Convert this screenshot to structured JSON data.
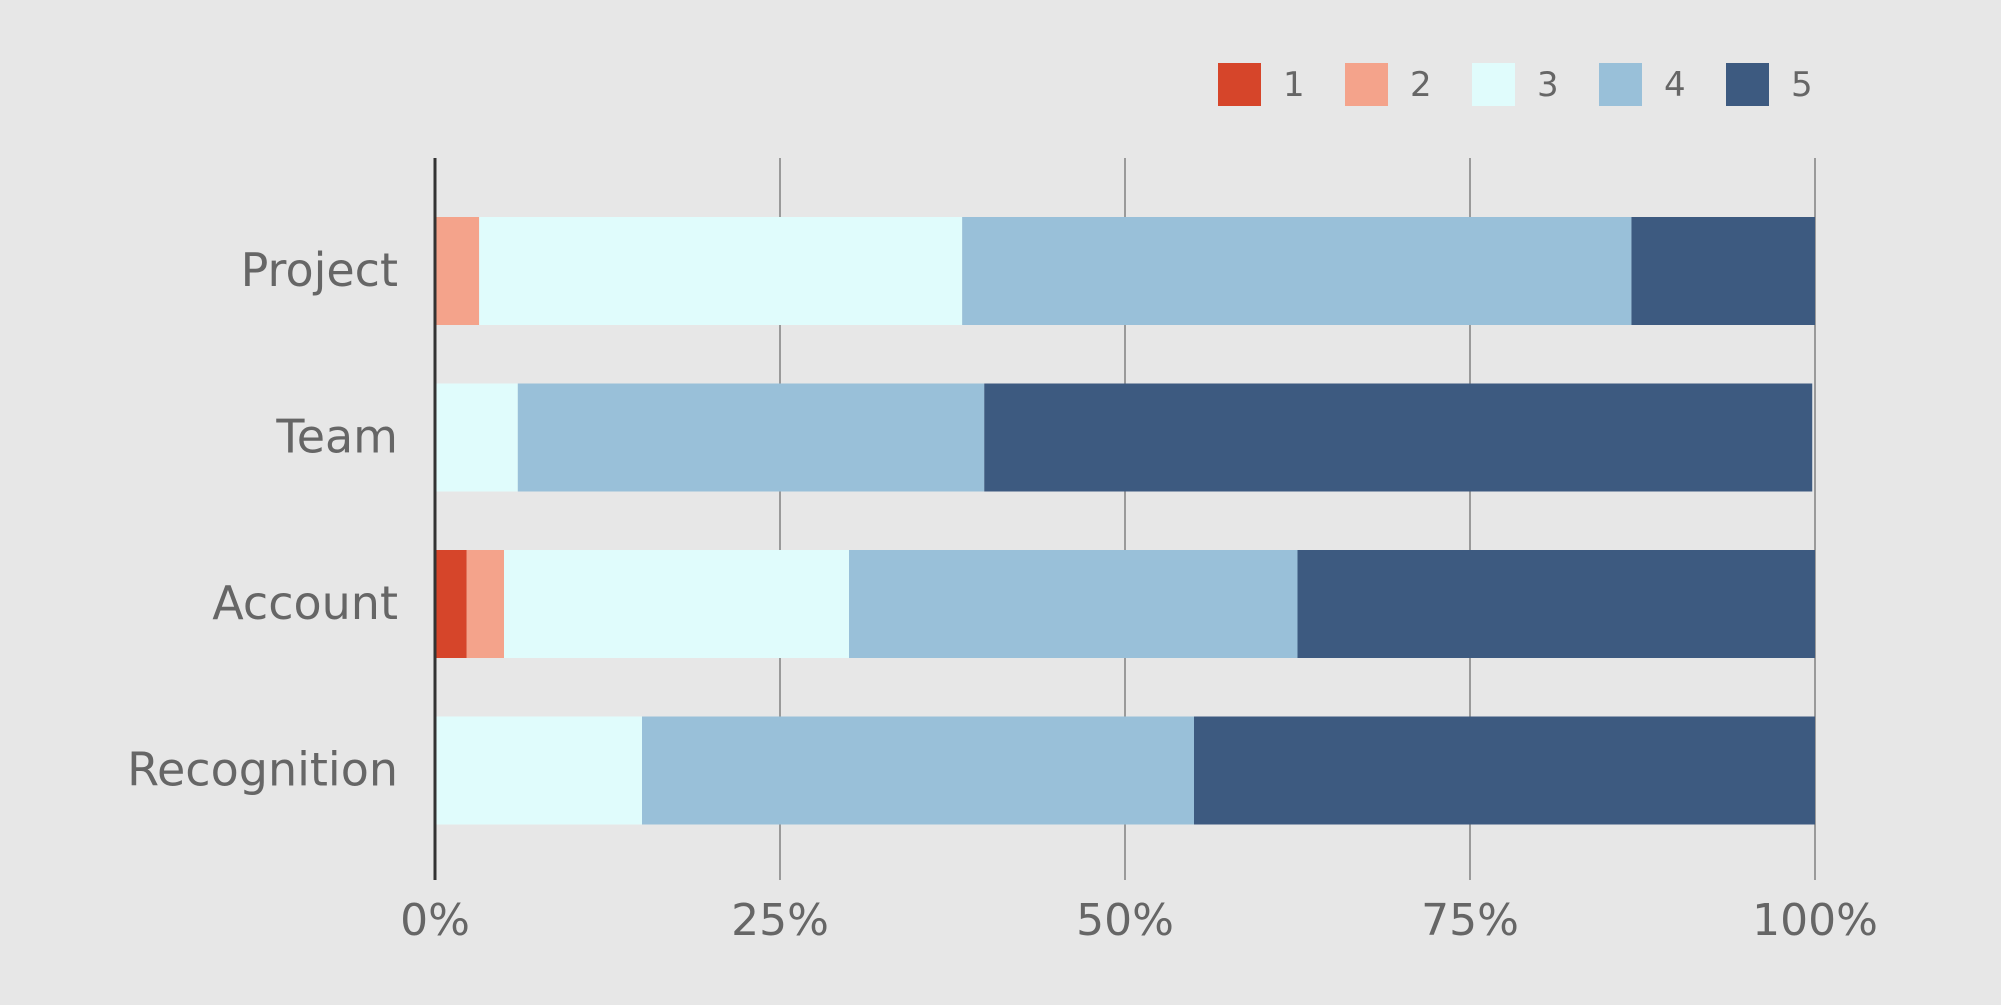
{
  "chart_data": {
    "type": "bar",
    "orientation": "horizontal",
    "stacked": true,
    "categories": [
      "Project",
      "Team",
      "Account",
      "Recognition"
    ],
    "series": [
      {
        "name": "1",
        "color": "#d6452a",
        "values": [
          0.0,
          0.0,
          2.3,
          0.0
        ]
      },
      {
        "name": "2",
        "color": "#f4a38b",
        "values": [
          3.2,
          0.0,
          2.7,
          0.0
        ]
      },
      {
        "name": "3",
        "color": "#e0fcfc",
        "values": [
          35.0,
          6.0,
          25.0,
          15.0
        ]
      },
      {
        "name": "4",
        "color": "#99c0d9",
        "values": [
          48.5,
          33.8,
          32.5,
          40.0
        ]
      },
      {
        "name": "5",
        "color": "#3d5a80",
        "values": [
          13.3,
          60.0,
          37.5,
          45.0
        ]
      }
    ],
    "xlim": [
      0,
      100
    ],
    "xticks": [
      "0%",
      "25%",
      "50%",
      "75%",
      "100%"
    ],
    "grid": true,
    "legend": "top-right",
    "title": "",
    "xlabel": "",
    "ylabel": ""
  },
  "colors": {
    "background": "#e7e7e7",
    "gridline": "#9a9a9a",
    "axis_line": "#333333",
    "text": "#666666"
  }
}
